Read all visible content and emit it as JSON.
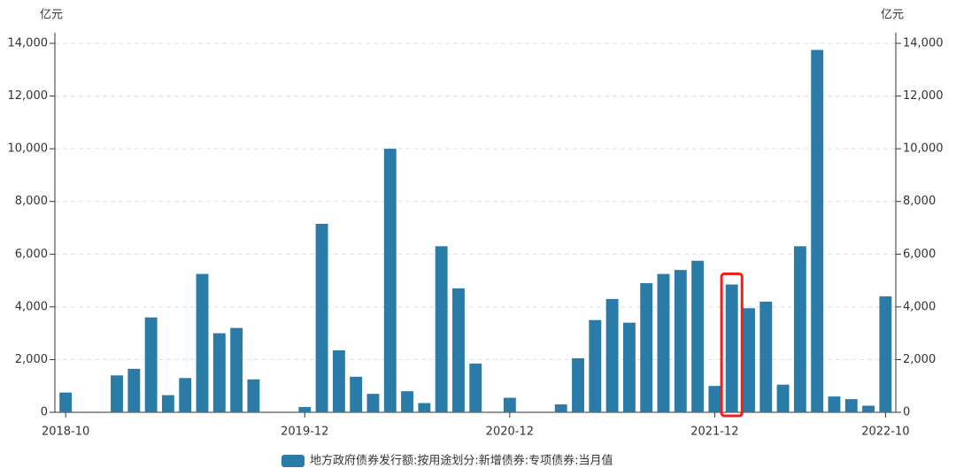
{
  "chart_data": {
    "type": "bar",
    "y_unit": "亿元",
    "y2_unit": "亿元",
    "categories": [
      "2018-10",
      null,
      null,
      null,
      null,
      null,
      null,
      null,
      null,
      null,
      null,
      null,
      null,
      null,
      "2019-12",
      null,
      null,
      null,
      null,
      null,
      null,
      null,
      null,
      null,
      null,
      null,
      "2020-12",
      null,
      null,
      null,
      null,
      null,
      null,
      null,
      null,
      null,
      null,
      null,
      "2021-12",
      null,
      null,
      null,
      null,
      null,
      null,
      null,
      null,
      null,
      "2022-10"
    ],
    "series": [
      {
        "name": "地方政府债券发行额:按用途划分:新增债券:专项债券:当月值",
        "color": "#2a7ba8",
        "values": [
          750,
          0,
          0,
          1400,
          1650,
          3600,
          650,
          1300,
          5250,
          3000,
          3200,
          1250,
          0,
          0,
          200,
          7150,
          2350,
          1350,
          700,
          10000,
          800,
          350,
          6300,
          4700,
          1850,
          0,
          550,
          0,
          0,
          300,
          2050,
          3500,
          4300,
          3400,
          4900,
          5250,
          5400,
          5750,
          1000,
          4850,
          3950,
          4200,
          1050,
          6300,
          13750,
          600,
          500,
          250,
          4400
        ]
      }
    ],
    "ylim": [
      0,
      14000
    ],
    "yticks": [
      0,
      {
        "value": 2000,
        "label": "2,000"
      },
      {
        "value": 4000,
        "label": "4,000"
      },
      {
        "value": 6000,
        "label": "6,000"
      },
      {
        "value": 8000,
        "label": "8,000"
      },
      {
        "value": 10000,
        "label": "10,000"
      },
      {
        "value": 12000,
        "label": "12,000"
      },
      {
        "value": 14000,
        "label": "14,000"
      }
    ],
    "y2lim": [
      0,
      14000
    ],
    "y2ticks": [
      0,
      {
        "value": 2000,
        "label": "2,000"
      },
      {
        "value": 4000,
        "label": "4,000"
      },
      {
        "value": 6000,
        "label": "6,000"
      },
      {
        "value": 8000,
        "label": "8,000"
      },
      {
        "value": 10000,
        "label": "10,000"
      },
      {
        "value": 12000,
        "label": "12,000"
      },
      {
        "value": 14000,
        "label": "14,000"
      }
    ],
    "grid": true,
    "legend": "bottom",
    "highlight": {
      "category_index": 39,
      "color": "#e8231d"
    }
  }
}
